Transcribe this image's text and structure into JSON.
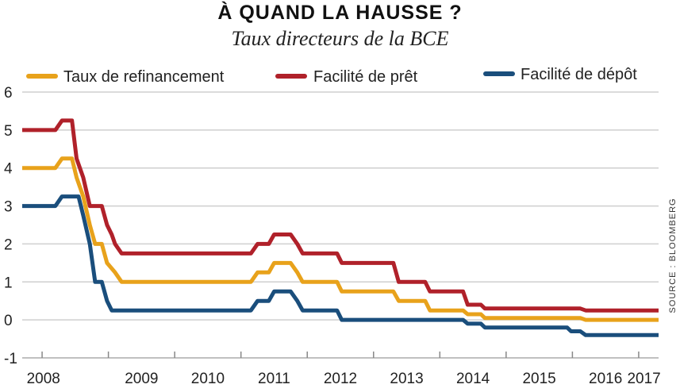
{
  "chart_data": {
    "type": "line",
    "title": "À QUAND LA HAUSSE ?",
    "subtitle": "Taux directeurs de la BCE",
    "source": "SOURCE : BLOOMBERG",
    "xlabel": "",
    "ylabel": "",
    "ylim": [
      -1,
      6
    ],
    "xlim": [
      2007.7,
      2017.3
    ],
    "yticks": [
      -1,
      0,
      1,
      2,
      3,
      4,
      5,
      6
    ],
    "xticks": [
      "2008",
      "2009",
      "2010",
      "2011",
      "2012",
      "2013",
      "2014",
      "2015",
      "2016",
      "2017"
    ],
    "grid": true,
    "legend_position": "top",
    "series": [
      {
        "name": "Taux de refinancement",
        "color": "#E8A21B",
        "points": [
          [
            2007.7,
            4.0
          ],
          [
            2008.2,
            4.0
          ],
          [
            2008.3,
            4.25
          ],
          [
            2008.45,
            4.25
          ],
          [
            2008.52,
            3.75
          ],
          [
            2008.62,
            3.25
          ],
          [
            2008.72,
            2.5
          ],
          [
            2008.8,
            2.0
          ],
          [
            2008.9,
            2.0
          ],
          [
            2008.98,
            1.5
          ],
          [
            2009.1,
            1.25
          ],
          [
            2009.2,
            1.0
          ],
          [
            2011.15,
            1.0
          ],
          [
            2011.25,
            1.25
          ],
          [
            2011.42,
            1.25
          ],
          [
            2011.5,
            1.5
          ],
          [
            2011.75,
            1.5
          ],
          [
            2011.85,
            1.25
          ],
          [
            2011.93,
            1.0
          ],
          [
            2012.45,
            1.0
          ],
          [
            2012.52,
            0.75
          ],
          [
            2013.3,
            0.75
          ],
          [
            2013.38,
            0.5
          ],
          [
            2013.78,
            0.5
          ],
          [
            2013.85,
            0.25
          ],
          [
            2014.35,
            0.25
          ],
          [
            2014.42,
            0.15
          ],
          [
            2014.62,
            0.15
          ],
          [
            2014.68,
            0.05
          ],
          [
            2016.12,
            0.05
          ],
          [
            2016.2,
            0.0
          ],
          [
            2017.3,
            0.0
          ]
        ]
      },
      {
        "name": "Facilité de prêt",
        "color": "#B0212A",
        "points": [
          [
            2007.7,
            5.0
          ],
          [
            2008.2,
            5.0
          ],
          [
            2008.3,
            5.25
          ],
          [
            2008.45,
            5.25
          ],
          [
            2008.52,
            4.25
          ],
          [
            2008.62,
            3.75
          ],
          [
            2008.72,
            3.0
          ],
          [
            2008.9,
            3.0
          ],
          [
            2008.98,
            2.5
          ],
          [
            2009.05,
            2.25
          ],
          [
            2009.1,
            2.0
          ],
          [
            2009.2,
            1.75
          ],
          [
            2011.15,
            1.75
          ],
          [
            2011.25,
            2.0
          ],
          [
            2011.42,
            2.0
          ],
          [
            2011.5,
            2.25
          ],
          [
            2011.75,
            2.25
          ],
          [
            2011.85,
            2.0
          ],
          [
            2011.93,
            1.75
          ],
          [
            2012.45,
            1.75
          ],
          [
            2012.52,
            1.5
          ],
          [
            2013.3,
            1.5
          ],
          [
            2013.38,
            1.0
          ],
          [
            2013.78,
            1.0
          ],
          [
            2013.85,
            0.75
          ],
          [
            2014.35,
            0.75
          ],
          [
            2014.42,
            0.4
          ],
          [
            2014.62,
            0.4
          ],
          [
            2014.68,
            0.3
          ],
          [
            2016.12,
            0.3
          ],
          [
            2016.2,
            0.25
          ],
          [
            2017.3,
            0.25
          ]
        ]
      },
      {
        "name": "Facilité de dépôt",
        "color": "#1A4E7C",
        "points": [
          [
            2007.7,
            3.0
          ],
          [
            2008.2,
            3.0
          ],
          [
            2008.3,
            3.25
          ],
          [
            2008.55,
            3.25
          ],
          [
            2008.62,
            2.75
          ],
          [
            2008.72,
            2.0
          ],
          [
            2008.8,
            1.0
          ],
          [
            2008.9,
            1.0
          ],
          [
            2008.98,
            0.5
          ],
          [
            2009.05,
            0.25
          ],
          [
            2011.15,
            0.25
          ],
          [
            2011.25,
            0.5
          ],
          [
            2011.42,
            0.5
          ],
          [
            2011.5,
            0.75
          ],
          [
            2011.75,
            0.75
          ],
          [
            2011.85,
            0.5
          ],
          [
            2011.93,
            0.25
          ],
          [
            2012.45,
            0.25
          ],
          [
            2012.52,
            0.0
          ],
          [
            2014.35,
            0.0
          ],
          [
            2014.42,
            -0.1
          ],
          [
            2014.62,
            -0.1
          ],
          [
            2014.68,
            -0.2
          ],
          [
            2015.92,
            -0.2
          ],
          [
            2015.98,
            -0.3
          ],
          [
            2016.12,
            -0.3
          ],
          [
            2016.2,
            -0.4
          ],
          [
            2017.3,
            -0.4
          ]
        ]
      }
    ]
  }
}
